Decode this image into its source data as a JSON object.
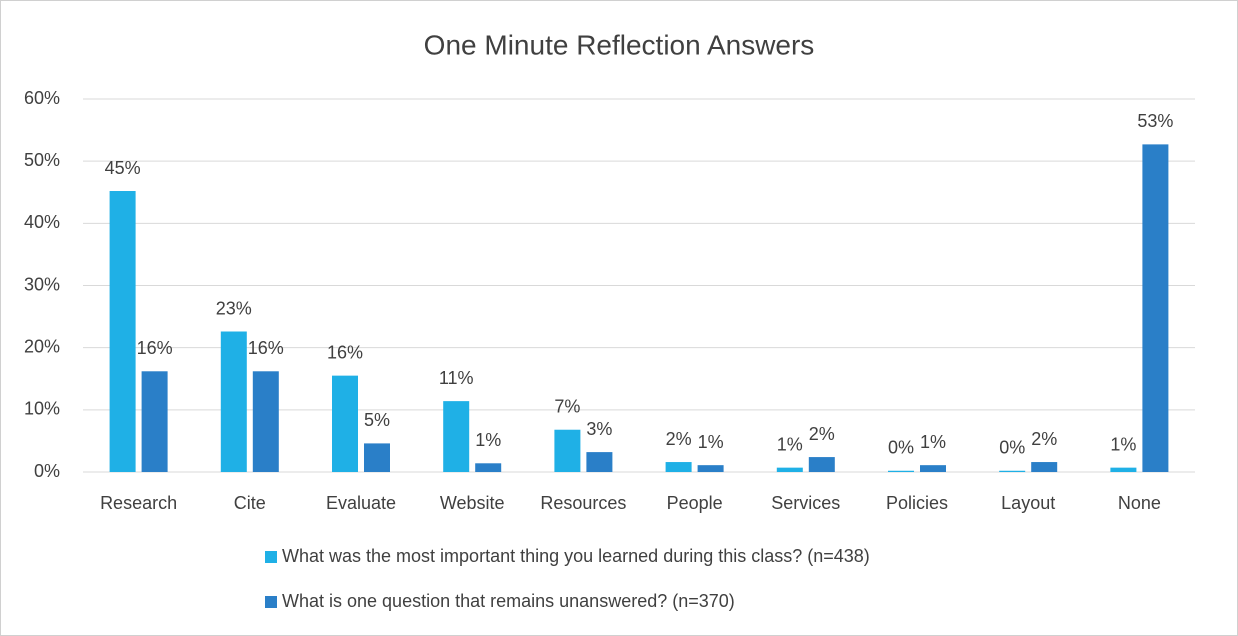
{
  "chart_data": {
    "type": "bar",
    "title": "One Minute Reflection Answers",
    "categories": [
      "Research",
      "Cite",
      "Evaluate",
      "Website",
      "Resources",
      "People",
      "Services",
      "Policies",
      "Layout",
      "None"
    ],
    "series": [
      {
        "name": "What was the most important thing you learned during this class? (n=438)",
        "color": "#1fb0e6",
        "values": [
          45.2,
          22.6,
          15.5,
          11.4,
          6.8,
          1.6,
          0.7,
          0.2,
          0.2,
          0.7
        ],
        "value_labels": [
          "45%",
          "23%",
          "16%",
          "11%",
          "7%",
          "2%",
          "1%",
          "0%",
          "0%",
          "1%"
        ]
      },
      {
        "name": "What is one question that remains unanswered? (n=370)",
        "color": "#2a7fc8",
        "values": [
          16.2,
          16.2,
          4.6,
          1.4,
          3.2,
          1.1,
          2.4,
          1.1,
          1.6,
          52.7
        ],
        "value_labels": [
          "16%",
          "16%",
          "5%",
          "1%",
          "3%",
          "1%",
          "2%",
          "1%",
          "2%",
          "53%"
        ]
      }
    ],
    "ylim": [
      0,
      60
    ],
    "yticks": [
      {
        "value": 0,
        "label": "0%"
      },
      {
        "value": 10,
        "label": "10%"
      },
      {
        "value": 20,
        "label": "20%"
      },
      {
        "value": 30,
        "label": "30%"
      },
      {
        "value": 40,
        "label": "40%"
      },
      {
        "value": 50,
        "label": "50%"
      },
      {
        "value": 60,
        "label": "60%"
      }
    ],
    "grid": true
  }
}
